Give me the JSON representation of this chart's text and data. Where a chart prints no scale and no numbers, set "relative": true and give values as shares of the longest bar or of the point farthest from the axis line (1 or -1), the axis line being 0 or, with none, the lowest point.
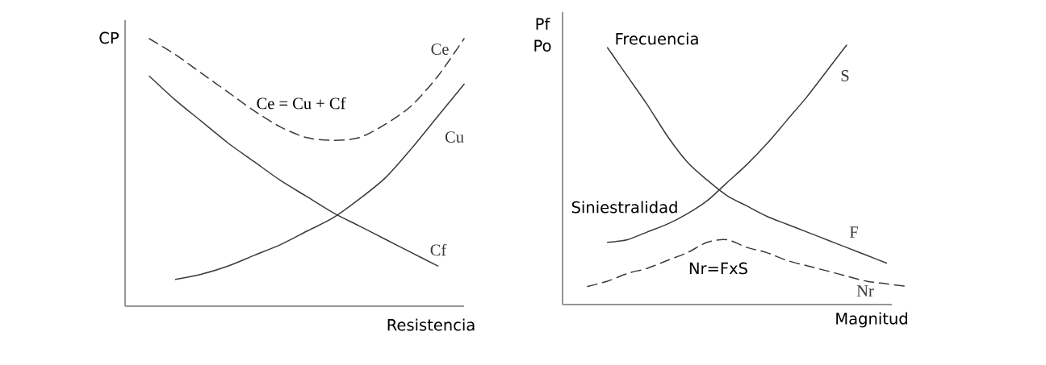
{
  "chart_data": [
    {
      "type": "line",
      "relative": true,
      "xlabel": "Resistencia",
      "ylabel": "CP",
      "categories": [
        null,
        null,
        null,
        null,
        null,
        null,
        null,
        null,
        null,
        null,
        null,
        null,
        null
      ],
      "series": [
        {
          "name": "Ce",
          "color": "#3a3a3a",
          "line_style": "dashed",
          "values": [
            1,
            0.94,
            0.87,
            0.8,
            0.73,
            0.67,
            0.63,
            0.62,
            0.63,
            0.68,
            0.75,
            0.86,
            1
          ]
        },
        {
          "name": "Cu",
          "color": "#3a3a3a",
          "line_style": "solid",
          "values": [
            null,
            0.1,
            0.12,
            0.15,
            0.19,
            0.23,
            0.28,
            0.33,
            0.4,
            0.48,
            0.59,
            0.71,
            0.83
          ]
        },
        {
          "name": "Cf",
          "color": "#3a3a3a",
          "line_style": "solid",
          "values": [
            0.86,
            0.77,
            0.69,
            0.61,
            0.54,
            0.47,
            0.41,
            0.35,
            0.3,
            0.25,
            0.2,
            0.15,
            null
          ]
        }
      ],
      "annotations": [
        "Ce = Cu + Cf"
      ]
    },
    {
      "type": "line",
      "relative": true,
      "xlabel": "Magnitud",
      "ylabel": "Pf Po",
      "categories": [
        null,
        null,
        null,
        null,
        null,
        null,
        null,
        null,
        null,
        null,
        null,
        null,
        null,
        null,
        null,
        null,
        null
      ],
      "series": [
        {
          "name": "S",
          "color": "#3a3a3a",
          "line_style": "solid",
          "values": [
            null,
            0.24,
            0.25,
            0.28,
            0.31,
            0.35,
            0.4,
            0.47,
            0.54,
            0.62,
            0.71,
            0.8,
            0.9,
            1,
            null,
            null,
            null
          ]
        },
        {
          "name": "F",
          "color": "#3a3a3a",
          "line_style": "solid",
          "values": [
            null,
            0.99,
            0.88,
            0.77,
            0.65,
            0.55,
            0.48,
            0.42,
            0.38,
            0.34,
            0.31,
            0.28,
            0.25,
            0.22,
            0.19,
            0.16,
            null
          ]
        },
        {
          "name": "Nr",
          "color": "#3a3a3a",
          "line_style": "dashed",
          "values": [
            0.07,
            0.09,
            0.12,
            0.14,
            0.17,
            0.2,
            0.24,
            0.25,
            0.22,
            0.2,
            0.17,
            0.15,
            0.13,
            0.11,
            0.09,
            0.08,
            0.07
          ]
        }
      ],
      "annotations": [
        "Frecuencia",
        "Siniestralidad",
        "Nr=FxS"
      ]
    }
  ]
}
